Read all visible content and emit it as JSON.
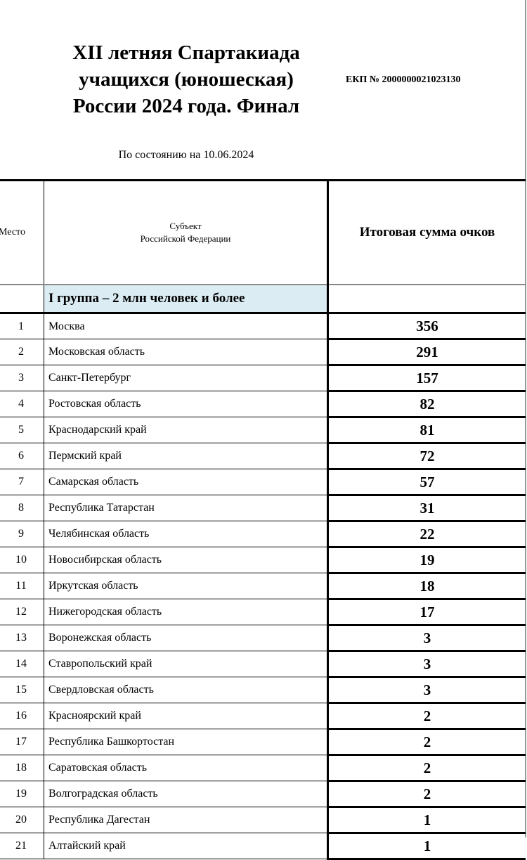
{
  "header": {
    "title_lines": [
      "XII летняя Спартакиада",
      "учащихся (юношеская)",
      "России 2024 года. Финал"
    ],
    "ekp": "ЕКП № 2000000021023130",
    "as_of": "По состоянию на 10.06.2024"
  },
  "table": {
    "columns": {
      "place": "Место",
      "subject_line1": "Субъект",
      "subject_line2": "Российской Федерации",
      "score": "Итоговая сумма очков"
    },
    "group_label": "I группа – 2 млн человек и более",
    "group_color": "#dbedf3",
    "rows": [
      {
        "place": "1",
        "subject": "Москва",
        "score": "356"
      },
      {
        "place": "2",
        "subject": "Московская область",
        "score": "291"
      },
      {
        "place": "3",
        "subject": "Санкт-Петербург",
        "score": "157"
      },
      {
        "place": "4",
        "subject": "Ростовская область",
        "score": "82"
      },
      {
        "place": "5",
        "subject": "Краснодарский край",
        "score": "81"
      },
      {
        "place": "6",
        "subject": "Пермский край",
        "score": "72"
      },
      {
        "place": "7",
        "subject": "Самарская область",
        "score": "57"
      },
      {
        "place": "8",
        "subject": "Республика Татарстан",
        "score": "31"
      },
      {
        "place": "9",
        "subject": "Челябинская область",
        "score": "22"
      },
      {
        "place": "10",
        "subject": "Новосибирская область",
        "score": "19"
      },
      {
        "place": "11",
        "subject": "Иркутская область",
        "score": "18"
      },
      {
        "place": "12",
        "subject": "Нижегородская область",
        "score": "17"
      },
      {
        "place": "13",
        "subject": "Воронежская область",
        "score": "3"
      },
      {
        "place": "14",
        "subject": "Ставропольский край",
        "score": "3"
      },
      {
        "place": "15",
        "subject": "Свердловская область",
        "score": "3"
      },
      {
        "place": "16",
        "subject": "Красноярский край",
        "score": "2"
      },
      {
        "place": "17",
        "subject": "Республика Башкортостан",
        "score": "2"
      },
      {
        "place": "18",
        "subject": "Саратовская область",
        "score": "2"
      },
      {
        "place": "19",
        "subject": "Волгоградская область",
        "score": "2"
      },
      {
        "place": "20",
        "subject": "Республика Дагестан",
        "score": "1"
      },
      {
        "place": "21",
        "subject": "Алтайский край",
        "score": "1"
      }
    ]
  }
}
